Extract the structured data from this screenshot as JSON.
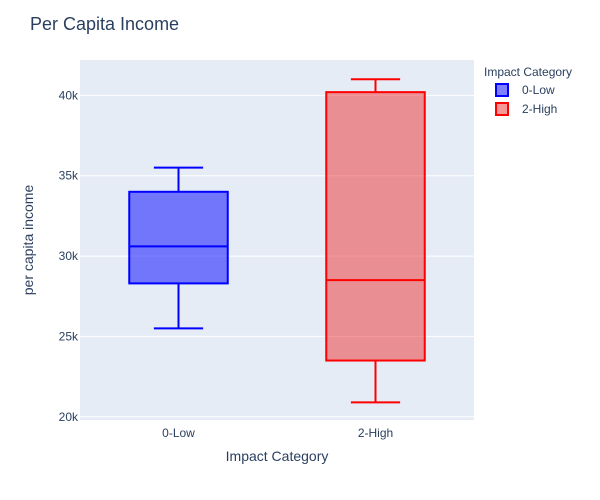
{
  "chart_data": {
    "type": "box",
    "title": "Per Capita Income",
    "xlabel": "Impact Category",
    "ylabel": "per capita income",
    "categories": [
      "0-Low",
      "2-High"
    ],
    "ylim": [
      19800,
      42200
    ],
    "yticks": [
      20000,
      25000,
      30000,
      35000,
      40000
    ],
    "ytick_labels": [
      "20k",
      "25k",
      "30k",
      "35k",
      "40k"
    ],
    "grid": true,
    "legend": {
      "title": "Impact Category",
      "placement": "top-right",
      "entries": [
        "0-Low",
        "2-High"
      ]
    },
    "series": [
      {
        "name": "0-Low",
        "category": "0-Low",
        "min": 25500,
        "q1": 28300,
        "median": 30600,
        "q3": 34000,
        "max": 35500,
        "line_color": "#0000ff",
        "fill_color": "#0000ff"
      },
      {
        "name": "2-High",
        "category": "2-High",
        "min": 20900,
        "q1": 23500,
        "median": 28500,
        "q3": 40200,
        "max": 41000,
        "line_color": "#ff0000",
        "fill_color": "#ed3131"
      }
    ],
    "colors": {
      "plot_bg": "#e5ecf6",
      "grid": "#ffffff",
      "text": "#2a3f5f"
    }
  }
}
